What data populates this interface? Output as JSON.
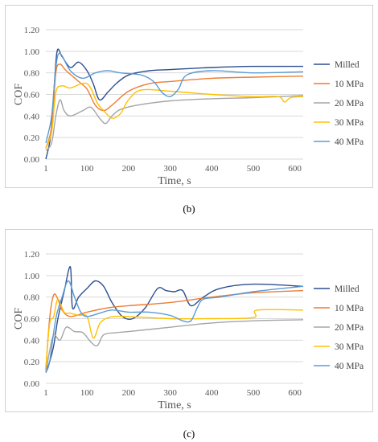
{
  "captions": [
    "(b)",
    "(c)"
  ],
  "chart_data": [
    {
      "type": "line",
      "panel": "(b)",
      "xlabel": "Time, s",
      "ylabel": "COF",
      "xlim": [
        1,
        620
      ],
      "ylim": [
        0,
        1.2
      ],
      "xticks": [
        1,
        100,
        200,
        300,
        400,
        500,
        600
      ],
      "yticks": [
        0.0,
        0.2,
        0.4,
        0.6,
        0.8,
        1.0,
        1.2
      ],
      "ytick_labels": [
        "0.00",
        "0.20",
        "0.40",
        "0.60",
        "0.80",
        "1.00",
        "1.20"
      ],
      "grid": "horizontal",
      "legend_position": "right",
      "series": [
        {
          "name": "Milled",
          "color": "#2e4f8f",
          "x": [
            1,
            12,
            20,
            28,
            40,
            60,
            80,
            100,
            115,
            130,
            150,
            170,
            200,
            250,
            300,
            400,
            500,
            620
          ],
          "y": [
            0.0,
            0.2,
            0.6,
            1.0,
            0.95,
            0.85,
            0.9,
            0.82,
            0.7,
            0.55,
            0.62,
            0.7,
            0.78,
            0.82,
            0.83,
            0.85,
            0.86,
            0.86
          ]
        },
        {
          "name": "10 MPa",
          "color": "#ed7d31",
          "x": [
            1,
            15,
            25,
            35,
            50,
            80,
            100,
            120,
            140,
            160,
            200,
            250,
            300,
            400,
            500,
            620
          ],
          "y": [
            0.1,
            0.3,
            0.8,
            0.88,
            0.82,
            0.72,
            0.65,
            0.5,
            0.45,
            0.5,
            0.63,
            0.7,
            0.72,
            0.75,
            0.76,
            0.77
          ]
        },
        {
          "name": "20 MPa",
          "color": "#a5a5a5",
          "x": [
            1,
            15,
            25,
            35,
            45,
            60,
            90,
            110,
            130,
            145,
            160,
            180,
            220,
            300,
            400,
            500,
            620
          ],
          "y": [
            0.08,
            0.15,
            0.4,
            0.55,
            0.45,
            0.4,
            0.45,
            0.48,
            0.38,
            0.33,
            0.4,
            0.46,
            0.5,
            0.54,
            0.56,
            0.57,
            0.59
          ]
        },
        {
          "name": "30 MPa",
          "color": "#ffc000",
          "x": [
            1,
            15,
            25,
            40,
            60,
            100,
            125,
            140,
            160,
            180,
            200,
            230,
            300,
            400,
            500,
            560,
            575,
            590,
            620
          ],
          "y": [
            0.1,
            0.25,
            0.62,
            0.68,
            0.66,
            0.7,
            0.52,
            0.45,
            0.38,
            0.42,
            0.55,
            0.64,
            0.63,
            0.6,
            0.58,
            0.58,
            0.53,
            0.57,
            0.58
          ]
        },
        {
          "name": "40 MPa",
          "color": "#5b9bd5",
          "x": [
            1,
            15,
            25,
            35,
            60,
            90,
            120,
            150,
            180,
            230,
            260,
            280,
            300,
            320,
            340,
            400,
            500,
            620
          ],
          "y": [
            0.15,
            0.4,
            0.85,
            0.98,
            0.82,
            0.75,
            0.8,
            0.82,
            0.8,
            0.78,
            0.72,
            0.62,
            0.58,
            0.65,
            0.78,
            0.82,
            0.8,
            0.81
          ]
        }
      ]
    },
    {
      "type": "line",
      "panel": "(c)",
      "xlabel": "Time, s",
      "ylabel": "COF",
      "xlim": [
        1,
        620
      ],
      "ylim": [
        0,
        1.2
      ],
      "xticks": [
        1,
        100,
        200,
        300,
        400,
        500,
        600
      ],
      "yticks": [
        0.0,
        0.2,
        0.4,
        0.6,
        0.8,
        1.0,
        1.2
      ],
      "ytick_labels": [
        "0.00",
        "0.20",
        "0.40",
        "0.60",
        "0.80",
        "1.00",
        "1.20"
      ],
      "grid": "horizontal",
      "legend_position": "right",
      "series": [
        {
          "name": "Milled",
          "color": "#2e4f8f",
          "x": [
            1,
            10,
            20,
            30,
            45,
            60,
            65,
            80,
            100,
            120,
            140,
            160,
            185,
            210,
            240,
            270,
            290,
            310,
            330,
            350,
            380,
            420,
            500,
            620
          ],
          "y": [
            0.1,
            0.2,
            0.35,
            0.6,
            0.85,
            1.08,
            0.7,
            0.8,
            0.88,
            0.95,
            0.9,
            0.75,
            0.62,
            0.6,
            0.7,
            0.88,
            0.86,
            0.85,
            0.86,
            0.72,
            0.8,
            0.88,
            0.92,
            0.9
          ]
        },
        {
          "name": "10 MPa",
          "color": "#ed7d31",
          "x": [
            1,
            10,
            20,
            30,
            40,
            60,
            100,
            150,
            200,
            300,
            400,
            500,
            620
          ],
          "y": [
            0.12,
            0.6,
            0.82,
            0.78,
            0.68,
            0.62,
            0.66,
            0.7,
            0.72,
            0.75,
            0.8,
            0.84,
            0.86
          ]
        },
        {
          "name": "20 MPa",
          "color": "#a5a5a5",
          "x": [
            1,
            10,
            20,
            35,
            50,
            70,
            90,
            110,
            125,
            140,
            170,
            200,
            300,
            400,
            500,
            620
          ],
          "y": [
            0.1,
            0.3,
            0.45,
            0.4,
            0.52,
            0.48,
            0.47,
            0.38,
            0.35,
            0.45,
            0.47,
            0.48,
            0.52,
            0.56,
            0.58,
            0.59
          ]
        },
        {
          "name": "30 MPa",
          "color": "#ffc000",
          "x": [
            1,
            10,
            20,
            30,
            45,
            60,
            80,
            100,
            115,
            130,
            145,
            165,
            200,
            300,
            400,
            500,
            510,
            620
          ],
          "y": [
            0.15,
            0.55,
            0.62,
            0.78,
            0.66,
            0.65,
            0.63,
            0.62,
            0.42,
            0.55,
            0.6,
            0.62,
            0.62,
            0.6,
            0.6,
            0.61,
            0.68,
            0.68
          ]
        },
        {
          "name": "40 MPa",
          "color": "#5b9bd5",
          "x": [
            1,
            10,
            25,
            40,
            55,
            70,
            85,
            100,
            130,
            160,
            200,
            250,
            300,
            330,
            350,
            365,
            380,
            420,
            500,
            620
          ],
          "y": [
            0.1,
            0.2,
            0.6,
            0.8,
            0.95,
            0.8,
            0.66,
            0.62,
            0.65,
            0.68,
            0.66,
            0.66,
            0.63,
            0.58,
            0.58,
            0.7,
            0.78,
            0.8,
            0.85,
            0.9
          ]
        }
      ]
    }
  ]
}
